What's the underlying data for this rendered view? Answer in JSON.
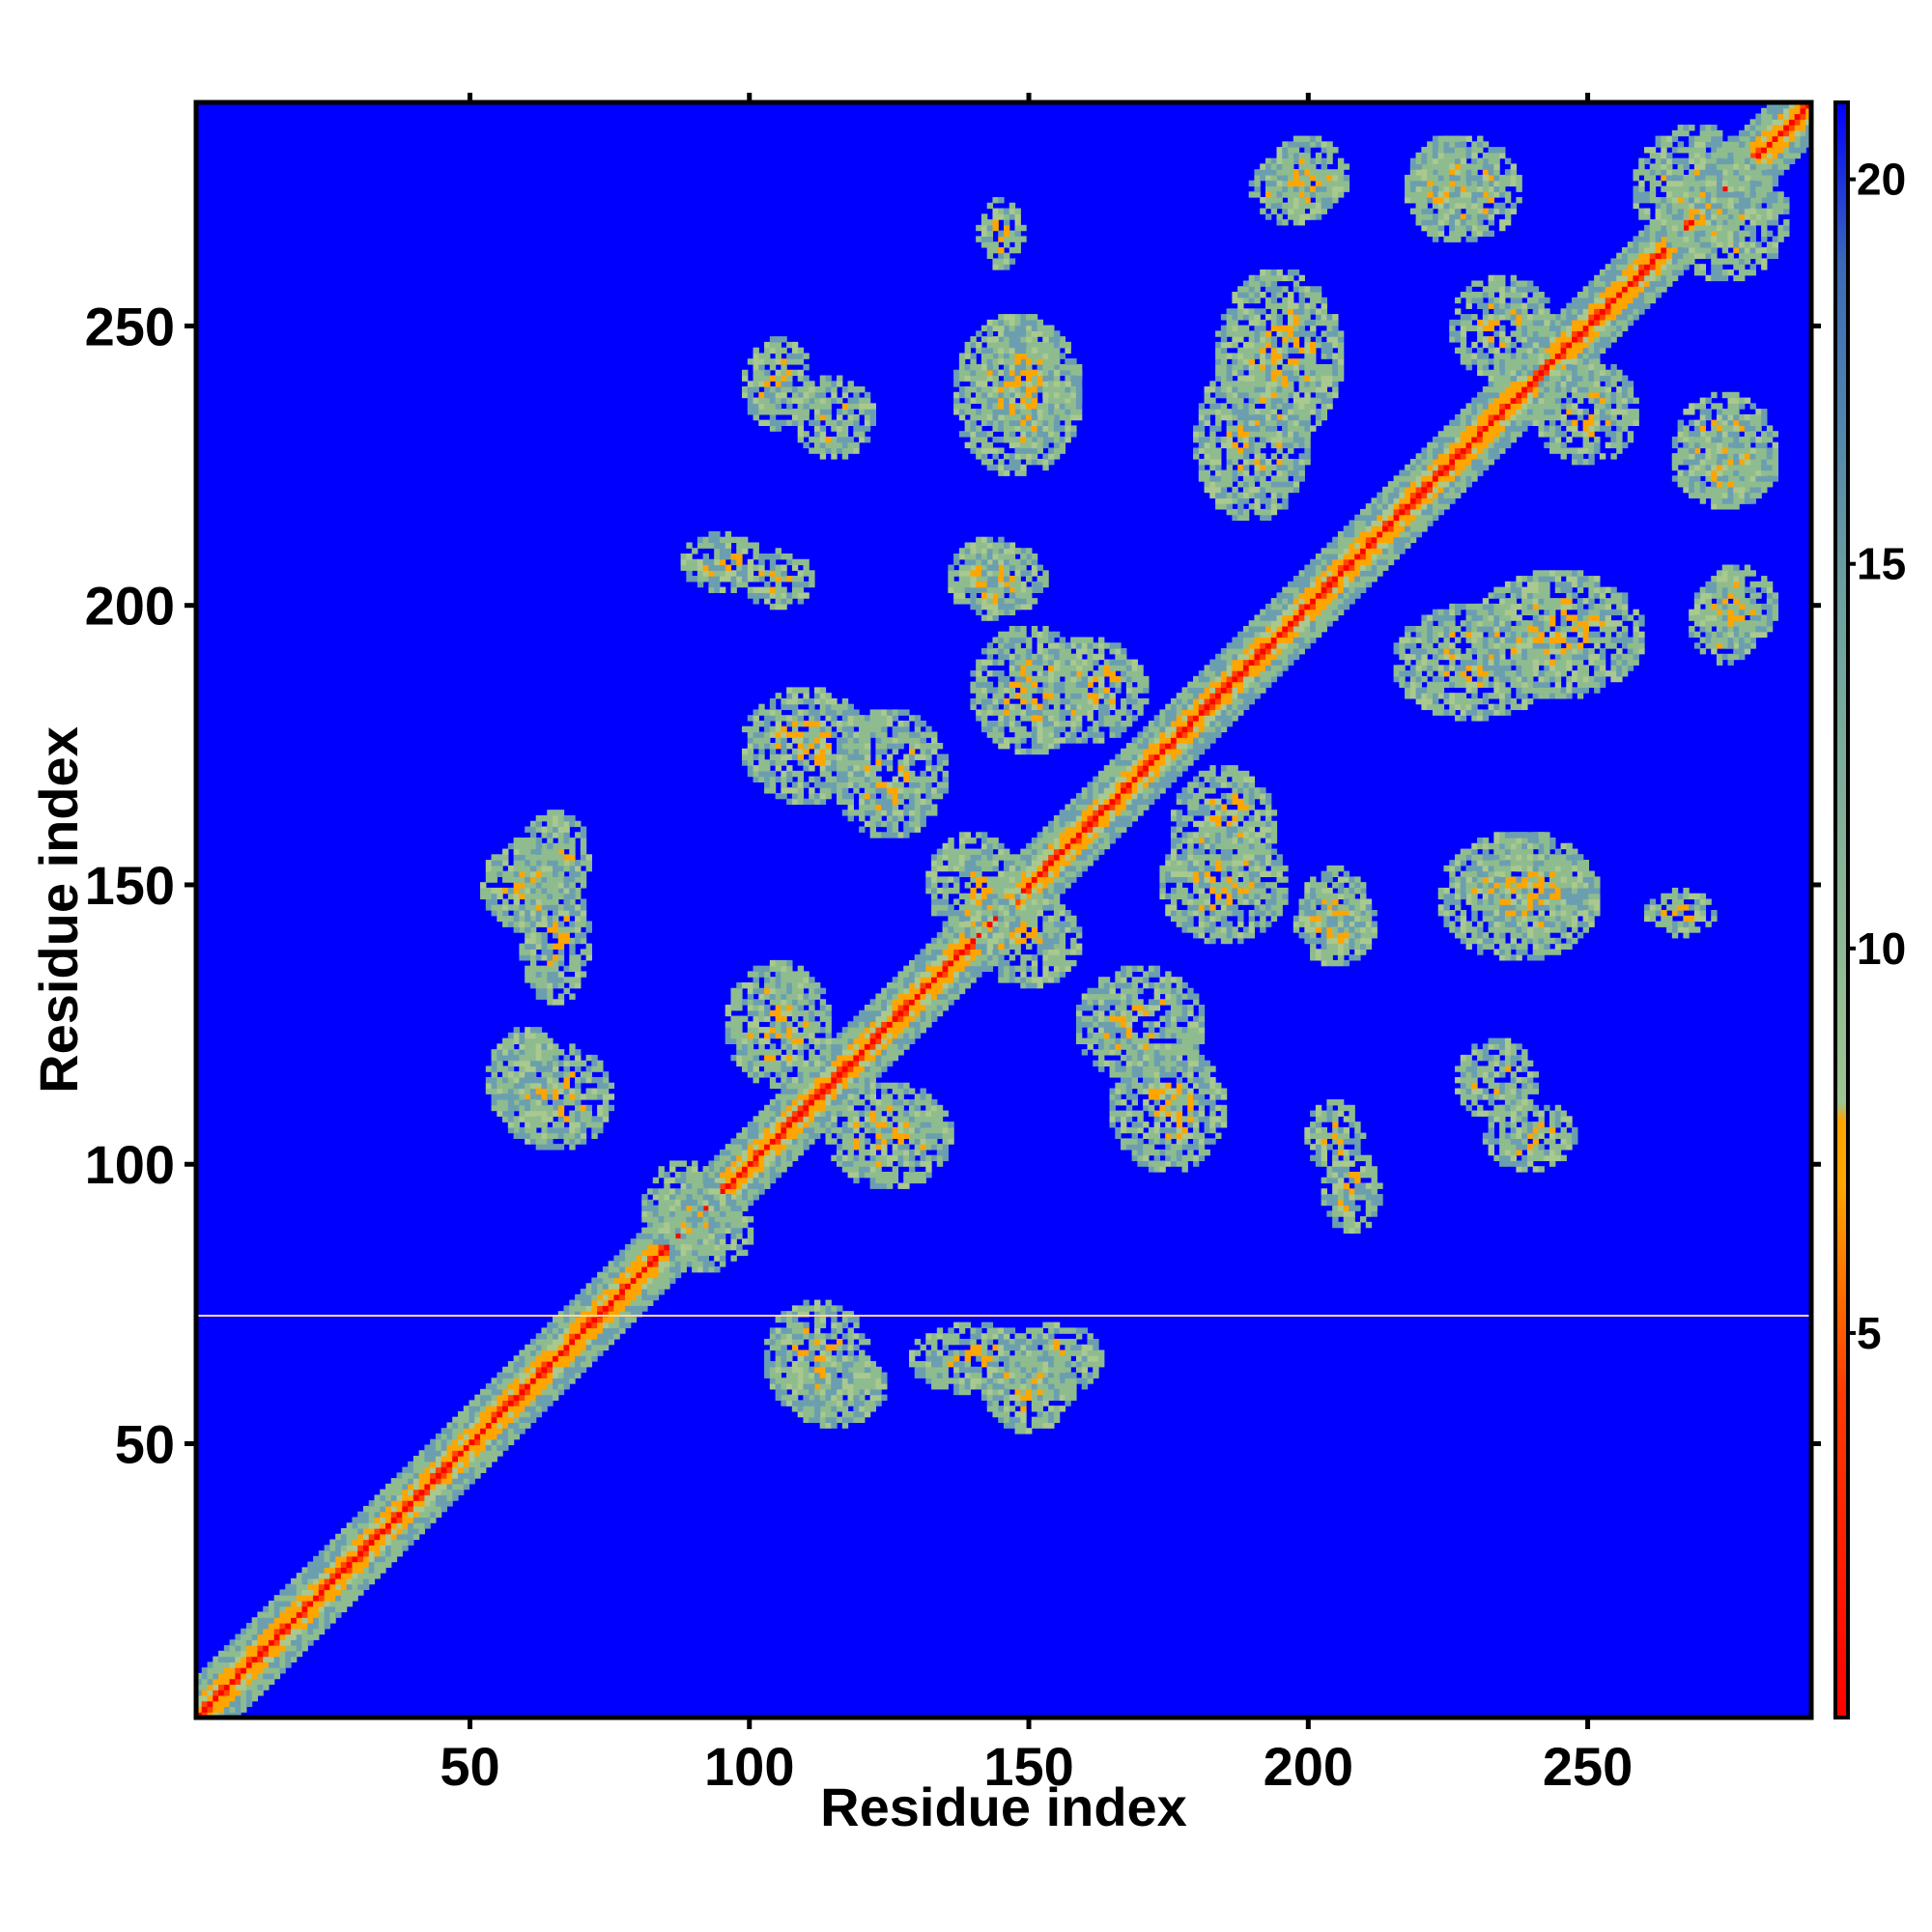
{
  "chart_data": {
    "type": "heatmap",
    "title": "",
    "xlabel": "Residue index",
    "ylabel": "Residue index",
    "xlim": [
      1,
      290
    ],
    "ylim": [
      1,
      290
    ],
    "x_ticks": [
      50,
      100,
      150,
      200,
      250
    ],
    "y_ticks": [
      50,
      100,
      150,
      200,
      250
    ],
    "colorbar": {
      "ticks": [
        5,
        10,
        15,
        20
      ],
      "range": [
        0,
        21
      ],
      "colors": {
        "low": "#ff0000",
        "mid": "#ffa500",
        "high_mid": "#8fbc8f",
        "high": "#0000ff"
      }
    },
    "background_value": 21,
    "background_color": "#0000ff",
    "diagonal": {
      "value_center": 2,
      "value_near": 6,
      "value_band": 12,
      "band_halfwidth": 7
    },
    "contact_blocks": [
      {
        "x": 115,
        "y": 60,
        "w": 18,
        "h": 14
      },
      {
        "x": 140,
        "y": 65,
        "w": 22,
        "h": 12
      },
      {
        "x": 65,
        "y": 112,
        "w": 20,
        "h": 18
      },
      {
        "x": 88,
        "y": 92,
        "w": 14,
        "h": 16
      },
      {
        "x": 110,
        "y": 175,
        "w": 22,
        "h": 20
      },
      {
        "x": 140,
        "y": 150,
        "w": 16,
        "h": 18
      },
      {
        "x": 125,
        "y": 105,
        "w": 22,
        "h": 18
      },
      {
        "x": 170,
        "y": 125,
        "w": 22,
        "h": 20
      },
      {
        "x": 160,
        "y": 185,
        "w": 22,
        "h": 18
      },
      {
        "x": 185,
        "y": 150,
        "w": 22,
        "h": 20
      },
      {
        "x": 205,
        "y": 145,
        "w": 12,
        "h": 16
      },
      {
        "x": 240,
        "y": 150,
        "w": 22,
        "h": 18
      },
      {
        "x": 230,
        "y": 190,
        "w": 28,
        "h": 20
      },
      {
        "x": 275,
        "y": 197,
        "w": 12,
        "h": 14
      },
      {
        "x": 275,
        "y": 228,
        "w": 18,
        "h": 20
      },
      {
        "x": 250,
        "y": 235,
        "w": 18,
        "h": 18
      },
      {
        "x": 195,
        "y": 245,
        "w": 22,
        "h": 30
      },
      {
        "x": 148,
        "y": 238,
        "w": 22,
        "h": 28
      },
      {
        "x": 200,
        "y": 277,
        "w": 14,
        "h": 14
      },
      {
        "x": 225,
        "y": 275,
        "w": 14,
        "h": 18
      },
      {
        "x": 270,
        "y": 275,
        "w": 22,
        "h": 22
      },
      {
        "x": 143,
        "y": 205,
        "w": 14,
        "h": 14
      },
      {
        "x": 115,
        "y": 234,
        "w": 14,
        "h": 14
      },
      {
        "x": 105,
        "y": 205,
        "w": 12,
        "h": 10
      },
      {
        "x": 208,
        "y": 95,
        "w": 10,
        "h": 14
      },
      {
        "x": 240,
        "y": 105,
        "w": 16,
        "h": 12
      },
      {
        "x": 145,
        "y": 267,
        "w": 8,
        "h": 12
      },
      {
        "x": 155,
        "y": 65,
        "w": 16,
        "h": 12
      },
      {
        "x": 60,
        "y": 150,
        "w": 16,
        "h": 16
      }
    ]
  }
}
